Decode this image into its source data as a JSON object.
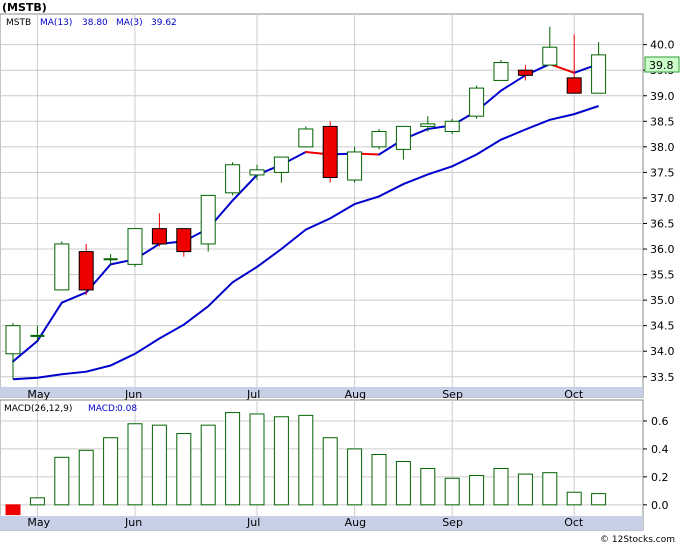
{
  "title": "(MSTB)",
  "watermark": "© 12Stocks.com",
  "price_legend": {
    "symbol": "MSTB",
    "ma13_label": "MA(13)",
    "ma13_value": "38.80",
    "ma3_label": "MA(3)",
    "ma3_value": "39.62"
  },
  "macd_legend": {
    "label": "MACD(26,12,9)",
    "value_label": "MACD:",
    "value": "0.08"
  },
  "last_price_tag": "39.8",
  "colors": {
    "candle_up_border": "#006400",
    "candle_down_fill": "#ee0000",
    "ma_slow": "#0000cc",
    "ma_fast_up": "#0000cc",
    "ma_fast_down": "#ee0000",
    "macd_bar_border": "#006400",
    "axis_band": "#c8d0e8",
    "grid": "#cccccc",
    "price_tag": "#ccffcc"
  },
  "chart_data": [
    {
      "type": "candlestick",
      "ylim": [
        33.3,
        40.6
      ],
      "y_ticks": [
        "40.0",
        "39.5",
        "39.0",
        "38.5",
        "38.0",
        "37.5",
        "37.0",
        "36.5",
        "36.0",
        "35.5",
        "35.0",
        "34.5",
        "34.0",
        "33.5"
      ],
      "x_labels": [
        {
          "label": "May",
          "index": 1
        },
        {
          "label": "Jun",
          "index": 5
        },
        {
          "label": "Jul",
          "index": 10
        },
        {
          "label": "Aug",
          "index": 14
        },
        {
          "label": "Sep",
          "index": 18
        },
        {
          "label": "Oct",
          "index": 23
        }
      ],
      "candles": [
        {
          "open": 33.95,
          "high": 34.55,
          "low": 33.45,
          "close": 34.5
        },
        {
          "open": 34.3,
          "high": 34.5,
          "low": 34.2,
          "close": 34.3
        },
        {
          "open": 35.2,
          "high": 36.15,
          "low": 35.2,
          "close": 36.1
        },
        {
          "open": 35.95,
          "high": 36.1,
          "low": 35.1,
          "close": 35.2
        },
        {
          "open": 35.8,
          "high": 35.9,
          "low": 35.7,
          "close": 35.8
        },
        {
          "open": 35.7,
          "high": 36.4,
          "low": 35.65,
          "close": 36.4
        },
        {
          "open": 36.4,
          "high": 36.7,
          "low": 36.05,
          "close": 36.1
        },
        {
          "open": 36.4,
          "high": 36.4,
          "low": 35.85,
          "close": 35.95
        },
        {
          "open": 36.1,
          "high": 37.05,
          "low": 35.95,
          "close": 37.05
        },
        {
          "open": 37.1,
          "high": 37.7,
          "low": 37.05,
          "close": 37.65
        },
        {
          "open": 37.45,
          "high": 37.65,
          "low": 37.35,
          "close": 37.55
        },
        {
          "open": 37.5,
          "high": 37.8,
          "low": 37.3,
          "close": 37.8
        },
        {
          "open": 38.0,
          "high": 38.4,
          "low": 38.0,
          "close": 38.35
        },
        {
          "open": 38.4,
          "high": 38.5,
          "low": 37.3,
          "close": 37.4
        },
        {
          "open": 37.35,
          "high": 38.0,
          "low": 37.3,
          "close": 37.9
        },
        {
          "open": 38.0,
          "high": 38.35,
          "low": 37.95,
          "close": 38.3
        },
        {
          "open": 37.95,
          "high": 38.4,
          "low": 37.75,
          "close": 38.4
        },
        {
          "open": 38.4,
          "high": 38.6,
          "low": 38.3,
          "close": 38.45
        },
        {
          "open": 38.3,
          "high": 38.55,
          "low": 38.25,
          "close": 38.5
        },
        {
          "open": 38.6,
          "high": 39.2,
          "low": 38.55,
          "close": 39.15
        },
        {
          "open": 39.3,
          "high": 39.7,
          "low": 39.3,
          "close": 39.65
        },
        {
          "open": 39.5,
          "high": 39.6,
          "low": 39.3,
          "close": 39.4
        },
        {
          "open": 39.6,
          "high": 40.35,
          "low": 39.6,
          "close": 39.95
        },
        {
          "open": 39.35,
          "high": 40.2,
          "low": 39.05,
          "close": 39.05
        },
        {
          "open": 39.05,
          "high": 40.05,
          "low": 39.05,
          "close": 39.8
        }
      ],
      "ma3": [
        33.8,
        34.2,
        34.95,
        35.15,
        35.7,
        35.8,
        36.1,
        36.15,
        36.4,
        36.95,
        37.45,
        37.65,
        37.9,
        37.85,
        37.87,
        37.85,
        38.15,
        38.35,
        38.42,
        38.7,
        39.1,
        39.4,
        39.62,
        39.45,
        39.62
      ],
      "ma13": [
        33.45,
        33.48,
        33.55,
        33.6,
        33.72,
        33.95,
        34.25,
        34.52,
        34.88,
        35.35,
        35.65,
        36.0,
        36.38,
        36.6,
        36.88,
        37.03,
        37.27,
        37.46,
        37.62,
        37.85,
        38.14,
        38.34,
        38.53,
        38.64,
        38.8
      ]
    },
    {
      "type": "bar",
      "title": "MACD(26,12,9)",
      "ylim": [
        -0.08,
        0.75
      ],
      "y_ticks": [
        "0.6",
        "0.4",
        "0.2",
        "0.0"
      ],
      "values": [
        -0.07,
        0.05,
        0.34,
        0.39,
        0.48,
        0.58,
        0.57,
        0.51,
        0.57,
        0.66,
        0.65,
        0.63,
        0.64,
        0.48,
        0.4,
        0.36,
        0.31,
        0.26,
        0.19,
        0.21,
        0.26,
        0.22,
        0.23,
        0.09,
        0.08
      ]
    }
  ]
}
